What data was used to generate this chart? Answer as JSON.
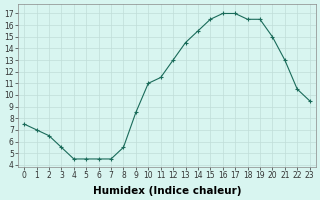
{
  "x": [
    0,
    1,
    2,
    3,
    4,
    5,
    6,
    7,
    8,
    9,
    10,
    11,
    12,
    13,
    14,
    15,
    16,
    17,
    18,
    19,
    20,
    21,
    22,
    23
  ],
  "y": [
    7.5,
    7.0,
    6.5,
    5.5,
    4.5,
    4.5,
    4.5,
    4.5,
    5.5,
    8.5,
    11.0,
    11.5,
    13.0,
    14.5,
    15.5,
    16.5,
    17.0,
    17.0,
    16.5,
    16.5,
    15.0,
    13.0,
    10.5,
    9.5
  ],
  "xlabel": "Humidex (Indice chaleur)",
  "ylabel": "",
  "xlim": [
    -0.5,
    23.5
  ],
  "ylim": [
    3.8,
    17.8
  ],
  "yticks": [
    4,
    5,
    6,
    7,
    8,
    9,
    10,
    11,
    12,
    13,
    14,
    15,
    16,
    17
  ],
  "xticks": [
    0,
    1,
    2,
    3,
    4,
    5,
    6,
    7,
    8,
    9,
    10,
    11,
    12,
    13,
    14,
    15,
    16,
    17,
    18,
    19,
    20,
    21,
    22,
    23
  ],
  "line_color": "#1a6b5a",
  "marker_color": "#1a6b5a",
  "bg_color": "#d8f5f0",
  "grid_color": "#c0ddd8",
  "tick_label_fontsize": 5.5,
  "xlabel_fontsize": 7.5
}
